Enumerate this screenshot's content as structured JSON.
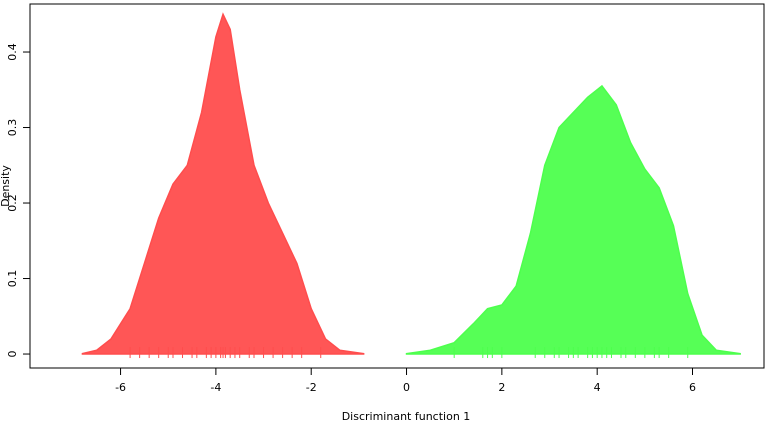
{
  "chart_data": {
    "type": "density",
    "xlabel": "Discriminant function 1",
    "ylabel": "Density",
    "xlim": [
      -7.9,
      7.5
    ],
    "ylim": [
      -0.0185,
      0.4636
    ],
    "xticks": [
      -6,
      -4,
      -2,
      0,
      2,
      4,
      6
    ],
    "yticks": [
      0.0,
      0.1,
      0.2,
      0.3,
      0.4
    ],
    "series": [
      {
        "color": "#ff4d4d",
        "x": [
          -6.8,
          -6.5,
          -6.2,
          -5.8,
          -5.5,
          -5.2,
          -4.9,
          -4.6,
          -4.3,
          -4.0,
          -3.85,
          -3.7,
          -3.5,
          -3.2,
          -2.9,
          -2.6,
          -2.3,
          -2.0,
          -1.7,
          -1.4,
          -0.9
        ],
        "values": [
          0.0005,
          0.005,
          0.02,
          0.06,
          0.12,
          0.18,
          0.225,
          0.25,
          0.32,
          0.42,
          0.45,
          0.43,
          0.35,
          0.25,
          0.2,
          0.16,
          0.12,
          0.06,
          0.02,
          0.005,
          0.0005
        ],
        "rug": [
          -5.8,
          -5.6,
          -5.4,
          -5.2,
          -5.0,
          -4.9,
          -4.7,
          -4.5,
          -4.4,
          -4.2,
          -4.1,
          -4.0,
          -3.9,
          -3.85,
          -3.8,
          -3.7,
          -3.6,
          -3.5,
          -3.3,
          -3.2,
          -3.0,
          -2.8,
          -2.6,
          -2.4,
          -2.2,
          -1.8
        ]
      },
      {
        "color": "#4dff4d",
        "x": [
          0.0,
          0.5,
          1.0,
          1.4,
          1.7,
          2.0,
          2.3,
          2.6,
          2.9,
          3.2,
          3.5,
          3.8,
          4.1,
          4.4,
          4.7,
          5.0,
          5.3,
          5.6,
          5.9,
          6.2,
          6.5,
          7.0
        ],
        "values": [
          0.0005,
          0.005,
          0.015,
          0.04,
          0.06,
          0.065,
          0.09,
          0.16,
          0.25,
          0.3,
          0.32,
          0.34,
          0.355,
          0.33,
          0.28,
          0.245,
          0.22,
          0.17,
          0.08,
          0.025,
          0.005,
          0.0005
        ],
        "rug": [
          1.0,
          1.6,
          1.7,
          1.8,
          2.0,
          2.7,
          2.9,
          3.1,
          3.2,
          3.4,
          3.5,
          3.6,
          3.8,
          3.9,
          4.0,
          4.1,
          4.2,
          4.3,
          4.5,
          4.6,
          4.8,
          5.0,
          5.2,
          5.3,
          5.5,
          5.9
        ]
      }
    ]
  }
}
